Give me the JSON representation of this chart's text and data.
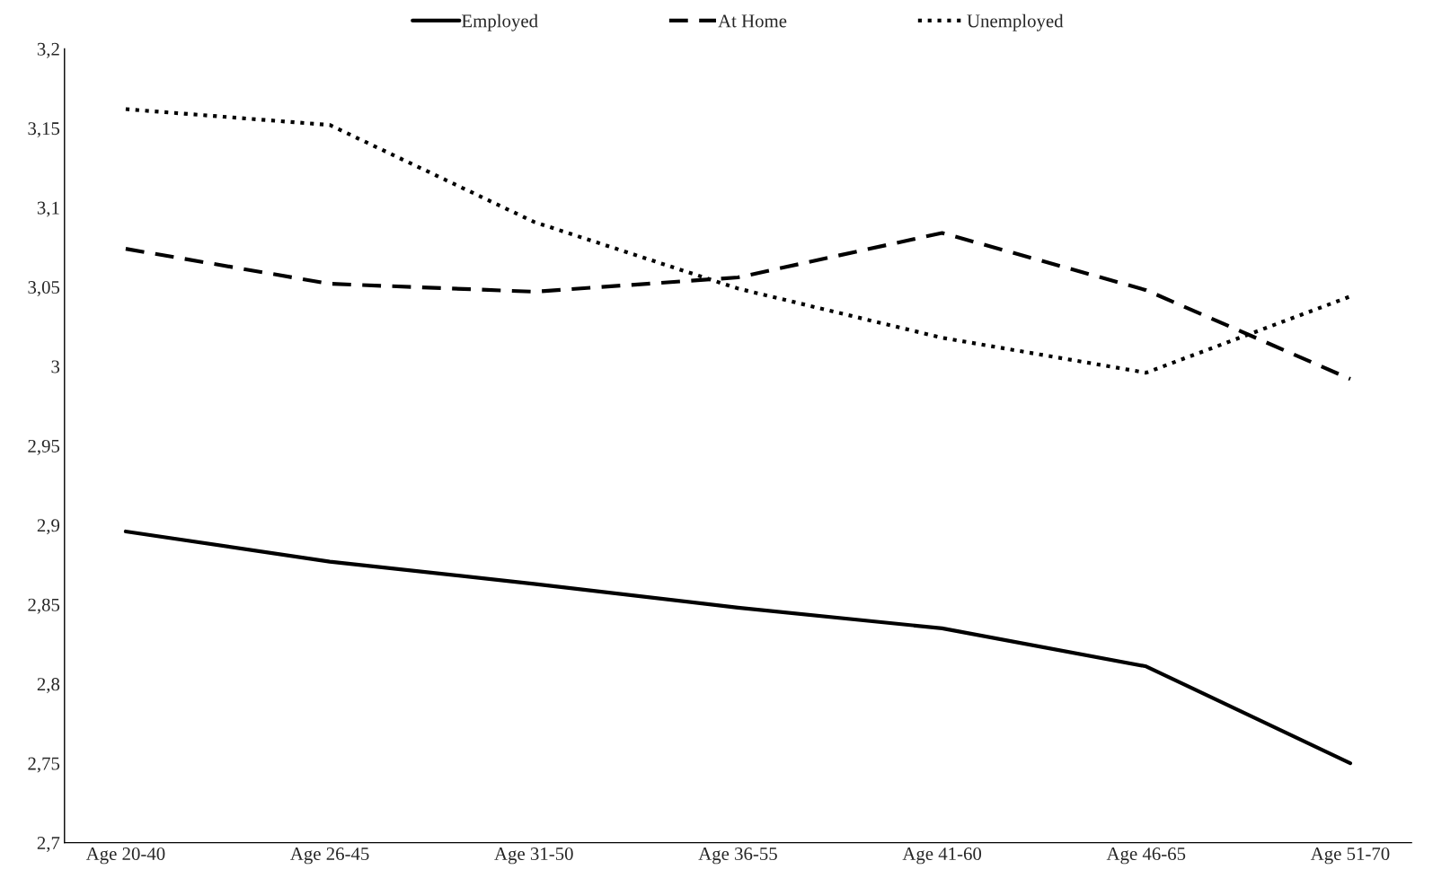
{
  "chart_data": {
    "type": "line",
    "categories": [
      "Age 20-40",
      "Age 26-45",
      "Age 31-50",
      "Age 36-55",
      "Age 41-60",
      "Age 46-65",
      "Age 51-70"
    ],
    "series": [
      {
        "name": "Employed",
        "color": "#000000",
        "line_style": "solid",
        "values": [
          2.896,
          2.877,
          2.863,
          2.848,
          2.835,
          2.811,
          2.75
        ]
      },
      {
        "name": "At Home",
        "color": "#000000",
        "line_style": "dashed",
        "values": [
          3.074,
          3.052,
          3.047,
          3.056,
          3.084,
          3.048,
          2.992
        ]
      },
      {
        "name": "Unemployed",
        "color": "#000000",
        "line_style": "dotted",
        "values": [
          3.162,
          3.152,
          3.091,
          3.049,
          3.018,
          2.996,
          3.044
        ]
      }
    ],
    "ylim": [
      2.7,
      3.2
    ],
    "yticks": [
      {
        "value": 2.7,
        "label": "2,7"
      },
      {
        "value": 2.75,
        "label": "2,75"
      },
      {
        "value": 2.8,
        "label": "2,8"
      },
      {
        "value": 2.85,
        "label": "2,85"
      },
      {
        "value": 2.9,
        "label": "2,9"
      },
      {
        "value": 2.95,
        "label": "2,95"
      },
      {
        "value": 3,
        "label": "3"
      },
      {
        "value": 3.05,
        "label": "3,05"
      },
      {
        "value": 3.1,
        "label": "3,1"
      },
      {
        "value": 3.15,
        "label": "3,15"
      },
      {
        "value": 3.2,
        "label": "3,2"
      }
    ],
    "grid": false,
    "legend": "top",
    "marker": "none"
  }
}
